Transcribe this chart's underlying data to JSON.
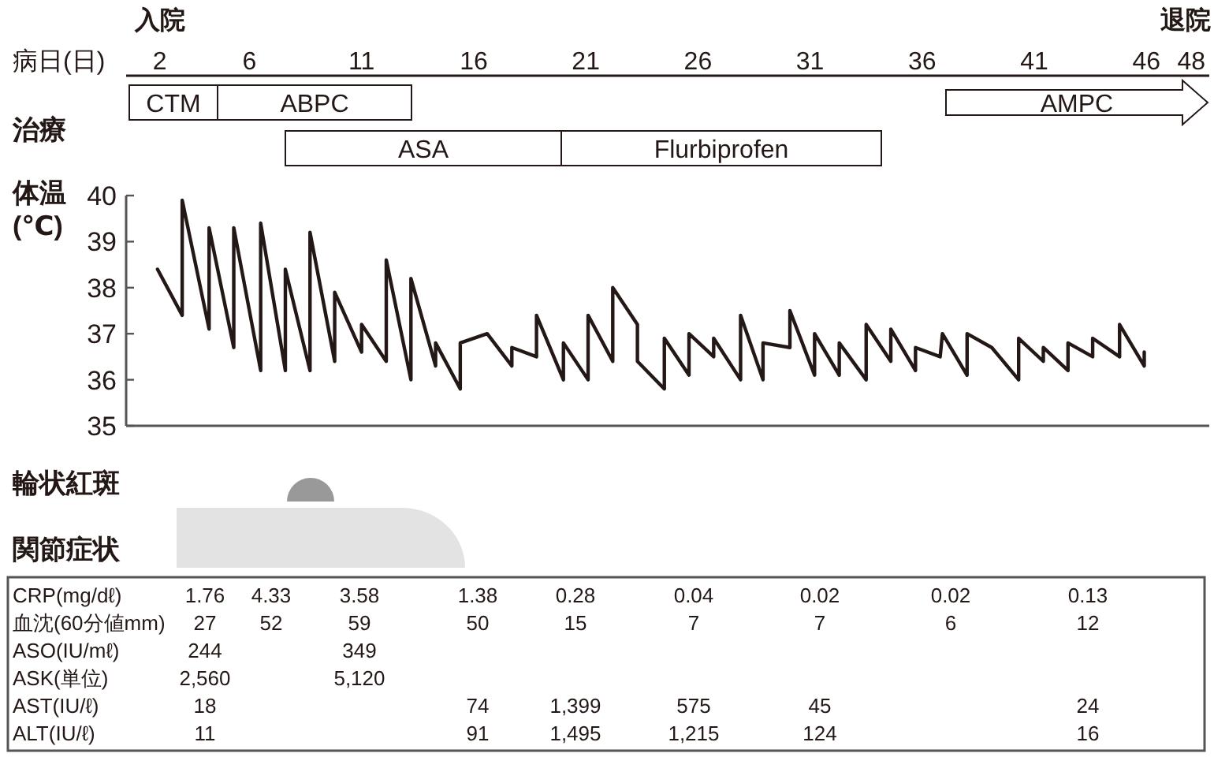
{
  "chart_data": {
    "type": "line",
    "xlabel": "病日(日)",
    "ylabel": "体温(℃)",
    "xlim": [
      0.5,
      48.8
    ],
    "xticks": [
      2,
      6,
      11,
      16,
      21,
      26,
      31,
      36,
      41,
      46,
      48
    ],
    "ylim": [
      35,
      40
    ],
    "yticks": [
      35,
      36,
      37,
      38,
      39,
      40
    ],
    "color": "#231815",
    "x": [
      1.9,
      3.0,
      3.0,
      4.2,
      4.2,
      5.3,
      5.3,
      6.5,
      6.5,
      7.6,
      7.6,
      8.7,
      8.7,
      9.8,
      9.8,
      11.0,
      11.0,
      12.1,
      12.1,
      13.2,
      13.2,
      14.3,
      14.3,
      15.4,
      15.4,
      16.6,
      17.7,
      17.7,
      18.8,
      18.8,
      20.0,
      20.0,
      21.1,
      21.1,
      22.2,
      22.2,
      23.3,
      23.3,
      24.5,
      24.5,
      25.6,
      25.6,
      26.7,
      26.7,
      27.9,
      27.9,
      28.9,
      28.9,
      30.1,
      30.1,
      31.2,
      31.2,
      32.3,
      32.3,
      33.5,
      33.5,
      34.6,
      34.6,
      35.7,
      35.7,
      36.8,
      36.9,
      38.0,
      38.0,
      39.1,
      40.3,
      40.3,
      41.4,
      41.4,
      42.5,
      42.5,
      43.6,
      43.6,
      44.8,
      44.8,
      45.9,
      45.9
    ],
    "values": [
      38.4,
      37.4,
      39.9,
      37.1,
      39.3,
      36.7,
      39.3,
      36.2,
      39.4,
      36.2,
      38.4,
      36.2,
      39.2,
      36.4,
      37.9,
      36.6,
      37.2,
      36.4,
      38.6,
      36.0,
      38.2,
      36.3,
      36.8,
      35.8,
      36.8,
      37.0,
      36.3,
      36.7,
      36.5,
      37.4,
      36.0,
      36.8,
      36.0,
      37.4,
      36.4,
      38.0,
      37.2,
      36.4,
      35.8,
      36.9,
      36.1,
      37.0,
      36.5,
      36.9,
      36.0,
      37.4,
      36.0,
      36.8,
      36.7,
      37.5,
      36.1,
      37.0,
      36.1,
      36.8,
      36.0,
      37.2,
      36.4,
      37.1,
      36.2,
      36.7,
      36.5,
      37.0,
      36.1,
      37.0,
      36.7,
      36.0,
      36.9,
      36.4,
      36.7,
      36.2,
      36.8,
      36.5,
      36.9,
      36.5,
      37.2,
      36.3,
      36.6
    ],
    "annotations": [
      "入院",
      "退院",
      "治療",
      "CTM",
      "ABPC",
      "ASA",
      "Flurbiprofen",
      "AMPC",
      "輪状紅斑",
      "関節症状",
      "CRP(mg/dℓ)",
      "1.76",
      "4.33",
      "3.58",
      "1.38",
      "0.28",
      "0.04",
      "0.02",
      "0.02",
      "0.13",
      "血沈(60分値mm)",
      "27",
      "52",
      "59",
      "50",
      "15",
      "7",
      "7",
      "6",
      "12",
      "ASO(IU/mℓ)",
      "244",
      "349",
      "ASK(単位)",
      "2,560",
      "5,120",
      "AST(IU/ℓ)",
      "18",
      "74",
      "1,399",
      "575",
      "45",
      "24",
      "ALT(IU/ℓ)",
      "11",
      "91",
      "1,495",
      "1,215",
      "124",
      "16"
    ]
  }
}
